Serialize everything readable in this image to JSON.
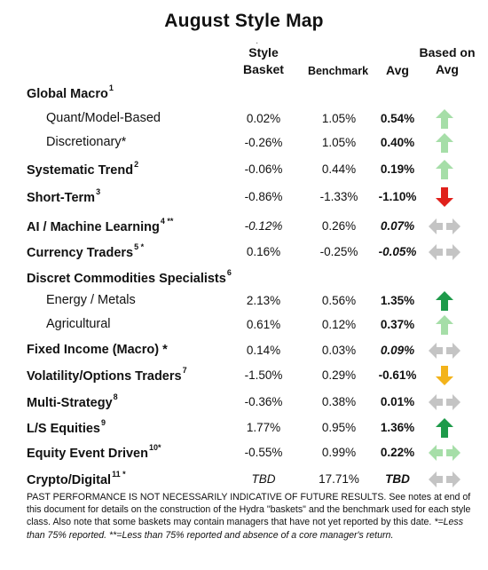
{
  "title": "August Style Map",
  "header": {
    "dot": "·",
    "style_basket_line1": "Style",
    "style_basket_line2": "Basket",
    "benchmark": "Benchmark",
    "avg": "Avg",
    "based_on_line1": "Based on",
    "based_on_line2": "Avg"
  },
  "rows": [
    {
      "label": "Global Macro",
      "sup": "1",
      "type": "cat",
      "basket": "",
      "benchmark": "",
      "avg": "",
      "arrow": "none"
    },
    {
      "label": "Quant/Model-Based",
      "sup": "",
      "type": "sub",
      "basket": "0.02%",
      "benchmark": "1.05%",
      "avg": "0.54%",
      "arrow": "up-light"
    },
    {
      "label": "Discretionary*",
      "sup": "",
      "type": "sub",
      "basket": "-0.26%",
      "benchmark": "1.05%",
      "avg": "0.40%",
      "arrow": "up-light"
    },
    {
      "label": "Systematic Trend",
      "sup": "2",
      "type": "cat",
      "basket": "-0.06%",
      "benchmark": "0.44%",
      "avg": "0.19%",
      "arrow": "up-light"
    },
    {
      "label": "Short-Term",
      "sup": "3",
      "type": "cat",
      "basket": "-0.86%",
      "benchmark": "-1.33%",
      "avg": "-1.10%",
      "arrow": "down-red"
    },
    {
      "label": "AI / Machine Learning",
      "sup": "4 **",
      "type": "cat",
      "basket": "-0.12%",
      "benchmark": "0.26%",
      "avg": "0.07%",
      "arrow": "sideways-gray",
      "italic_basket": true,
      "italic_avg": true
    },
    {
      "label": "Currency Traders",
      "sup": "5 *",
      "type": "cat",
      "basket": "0.16%",
      "benchmark": "-0.25%",
      "avg": "-0.05%",
      "arrow": "sideways-gray",
      "italic_avg": true
    },
    {
      "label": "Discret Commodities Specialists",
      "sup": "6",
      "type": "cat",
      "basket": "",
      "benchmark": "",
      "avg": "",
      "arrow": "none"
    },
    {
      "label": "Energy / Metals",
      "sup": "",
      "type": "sub",
      "basket": "2.13%",
      "benchmark": "0.56%",
      "avg": "1.35%",
      "arrow": "up-dark"
    },
    {
      "label": "Agricultural",
      "sup": "",
      "type": "sub",
      "basket": "0.61%",
      "benchmark": "0.12%",
      "avg": "0.37%",
      "arrow": "up-light"
    },
    {
      "label": "Fixed Income (Macro) *",
      "sup": "",
      "type": "cat",
      "basket": "0.14%",
      "benchmark": "0.03%",
      "avg": "0.09%",
      "arrow": "sideways-gray",
      "italic_avg": true
    },
    {
      "label": "Volatility/Options Traders",
      "sup": "7",
      "type": "cat",
      "basket": "-1.50%",
      "benchmark": "0.29%",
      "avg": "-0.61%",
      "arrow": "down-orange"
    },
    {
      "label": "Multi-Strategy",
      "sup": "8",
      "type": "cat",
      "basket": "-0.36%",
      "benchmark": "0.38%",
      "avg": "0.01%",
      "arrow": "sideways-gray"
    },
    {
      "label": "L/S Equities",
      "sup": "9",
      "type": "cat",
      "basket": "1.77%",
      "benchmark": "0.95%",
      "avg": "1.36%",
      "arrow": "up-dark"
    },
    {
      "label": "Equity Event Driven",
      "sup": "10*",
      "type": "cat",
      "basket": "-0.55%",
      "benchmark": "0.99%",
      "avg": "0.22%",
      "arrow": "sideways-green"
    },
    {
      "label": "Crypto/Digital",
      "sup": "11 *",
      "type": "cat",
      "basket": "TBD",
      "benchmark": "17.71%",
      "avg": "TBD",
      "arrow": "sideways-gray",
      "italic_basket": true,
      "italic_avg": true
    }
  ],
  "footer": {
    "line1": "PAST PERFORMANCE IS NOT NECESSARILY INDICATIVE OF FUTURE RESULTS.  See notes at end of this document for details on the construction of the Hydra \"baskets\" and the benchmark used for each style class.  Also note that some baskets may contain managers that have not yet reported by this date.",
    "note": "*=Less than 75% reported.  **=Less than 75% reported and absence of a core manager's return."
  },
  "colors": {
    "up_light": "#a6dea8",
    "up_dark": "#1e9a4a",
    "down_red": "#e0201b",
    "down_orange": "#f3b31a",
    "sideways_gray": "#c4c4c4",
    "sideways_green": "#a6dea8"
  }
}
